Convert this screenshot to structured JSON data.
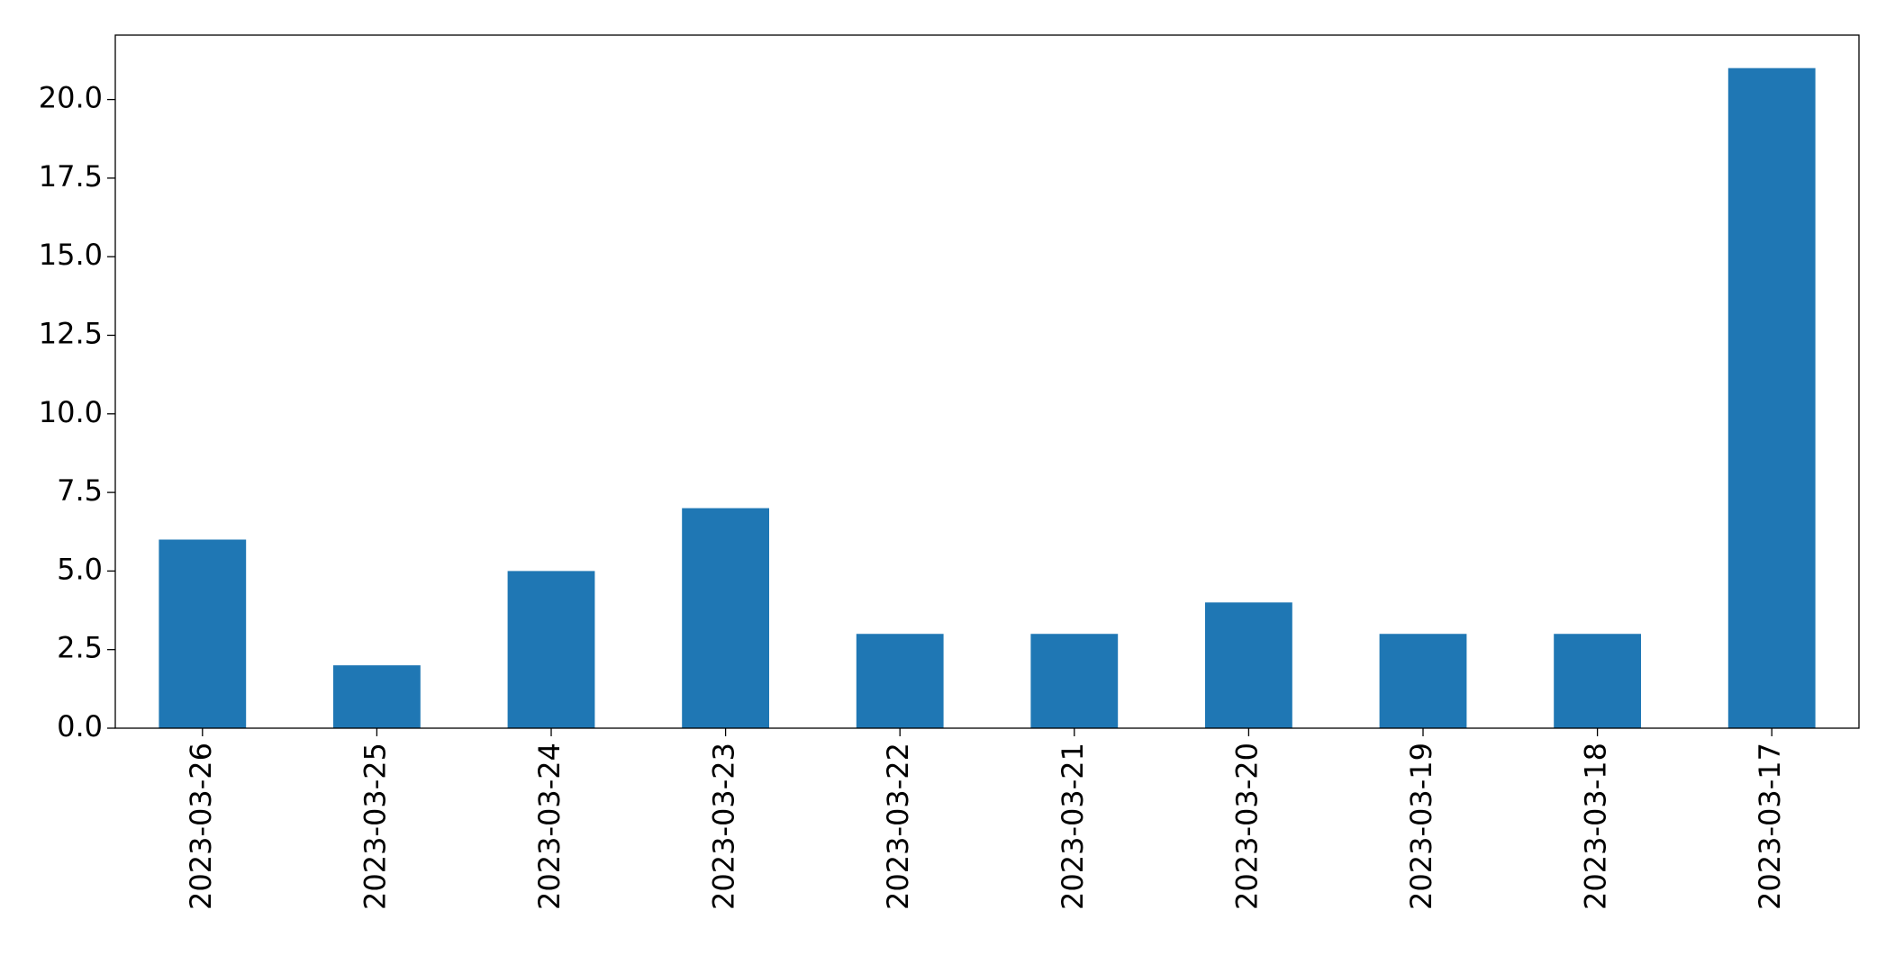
{
  "chart_data": {
    "type": "bar",
    "categories": [
      "2023-03-26",
      "2023-03-25",
      "2023-03-24",
      "2023-03-23",
      "2023-03-22",
      "2023-03-21",
      "2023-03-20",
      "2023-03-19",
      "2023-03-18",
      "2023-03-17"
    ],
    "values": [
      6,
      2,
      5,
      7,
      3,
      3,
      4,
      3,
      3,
      21
    ],
    "color": "#1f77b4",
    "ylim": [
      0,
      22.05
    ],
    "yticks": [
      {
        "value": 0,
        "label": "0.0"
      },
      2.5,
      {
        "value": 5,
        "label": "5.0"
      },
      7.5,
      {
        "value": 10,
        "label": "10.0"
      },
      12.5,
      {
        "value": 15,
        "label": "15.0"
      },
      17.5,
      {
        "value": 20,
        "label": "20.0"
      }
    ],
    "grid": false
  }
}
